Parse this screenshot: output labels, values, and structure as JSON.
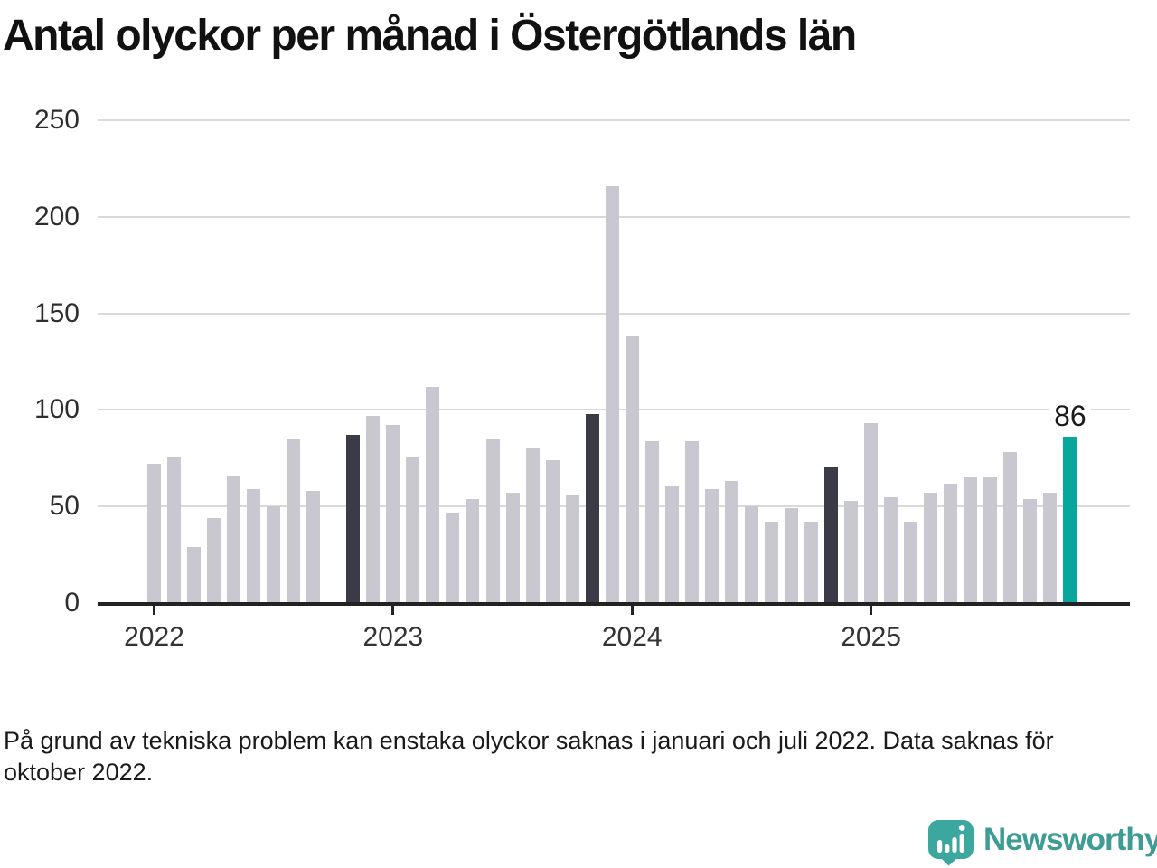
{
  "page": {
    "title": "Antal olyckor per månad i Östergötlands län",
    "footnote_lines": [
      "På grund av tekniska problem kan enstaka olyckor saknas i januari och juli 2022. Data saknas för",
      "oktober 2022."
    ],
    "brand": {
      "name": "Newsworthy"
    }
  },
  "colors": {
    "bar_default": "#c9c8d1",
    "bar_highlight_dark": "#3b3b48",
    "bar_highlight_teal": "#07a89b",
    "grid": "#d9d9d9",
    "axis": "#222222",
    "annotation_text": "#1a1a1a",
    "brand_teal": "#3f9c94",
    "brand_icon_teal": "#3ba79f"
  },
  "chart_data": {
    "type": "bar",
    "title": "Antal olyckor per månad i Östergötlands län",
    "xlabel": "",
    "ylabel": "",
    "ylim": [
      0,
      250
    ],
    "yticks": [
      0,
      50,
      100,
      150,
      200,
      250
    ],
    "year_ticks": [
      "2022",
      "2023",
      "2024",
      "2025"
    ],
    "grid": "horizontal",
    "legend": "none",
    "annotation": {
      "text": "86",
      "month": "2025-11"
    },
    "missing_months": [
      "2022-10"
    ],
    "highlight_dark_months": [
      "2022-11",
      "2023-11",
      "2024-11"
    ],
    "highlight_teal_months": [
      "2025-11"
    ],
    "months": [
      {
        "month": "2022-01",
        "value": 72
      },
      {
        "month": "2022-02",
        "value": 76
      },
      {
        "month": "2022-03",
        "value": 29
      },
      {
        "month": "2022-04",
        "value": 44
      },
      {
        "month": "2022-05",
        "value": 66
      },
      {
        "month": "2022-06",
        "value": 59
      },
      {
        "month": "2022-07",
        "value": 50
      },
      {
        "month": "2022-08",
        "value": 85
      },
      {
        "month": "2022-09",
        "value": 58
      },
      {
        "month": "2022-10",
        "value": null
      },
      {
        "month": "2022-11",
        "value": 87
      },
      {
        "month": "2022-12",
        "value": 97
      },
      {
        "month": "2023-01",
        "value": 92
      },
      {
        "month": "2023-02",
        "value": 76
      },
      {
        "month": "2023-03",
        "value": 112
      },
      {
        "month": "2023-04",
        "value": 47
      },
      {
        "month": "2023-05",
        "value": 54
      },
      {
        "month": "2023-06",
        "value": 85
      },
      {
        "month": "2023-07",
        "value": 57
      },
      {
        "month": "2023-08",
        "value": 80
      },
      {
        "month": "2023-09",
        "value": 74
      },
      {
        "month": "2023-10",
        "value": 56
      },
      {
        "month": "2023-11",
        "value": 98
      },
      {
        "month": "2023-12",
        "value": 216
      },
      {
        "month": "2024-01",
        "value": 138
      },
      {
        "month": "2024-02",
        "value": 84
      },
      {
        "month": "2024-03",
        "value": 61
      },
      {
        "month": "2024-04",
        "value": 84
      },
      {
        "month": "2024-05",
        "value": 59
      },
      {
        "month": "2024-06",
        "value": 63
      },
      {
        "month": "2024-07",
        "value": 50
      },
      {
        "month": "2024-08",
        "value": 42
      },
      {
        "month": "2024-09",
        "value": 49
      },
      {
        "month": "2024-10",
        "value": 42
      },
      {
        "month": "2024-11",
        "value": 70
      },
      {
        "month": "2024-12",
        "value": 53
      },
      {
        "month": "2025-01",
        "value": 93
      },
      {
        "month": "2025-02",
        "value": 55
      },
      {
        "month": "2025-03",
        "value": 42
      },
      {
        "month": "2025-04",
        "value": 57
      },
      {
        "month": "2025-05",
        "value": 62
      },
      {
        "month": "2025-06",
        "value": 65
      },
      {
        "month": "2025-07",
        "value": 65
      },
      {
        "month": "2025-08",
        "value": 78
      },
      {
        "month": "2025-09",
        "value": 54
      },
      {
        "month": "2025-10",
        "value": 57
      },
      {
        "month": "2025-11",
        "value": 86
      }
    ]
  }
}
